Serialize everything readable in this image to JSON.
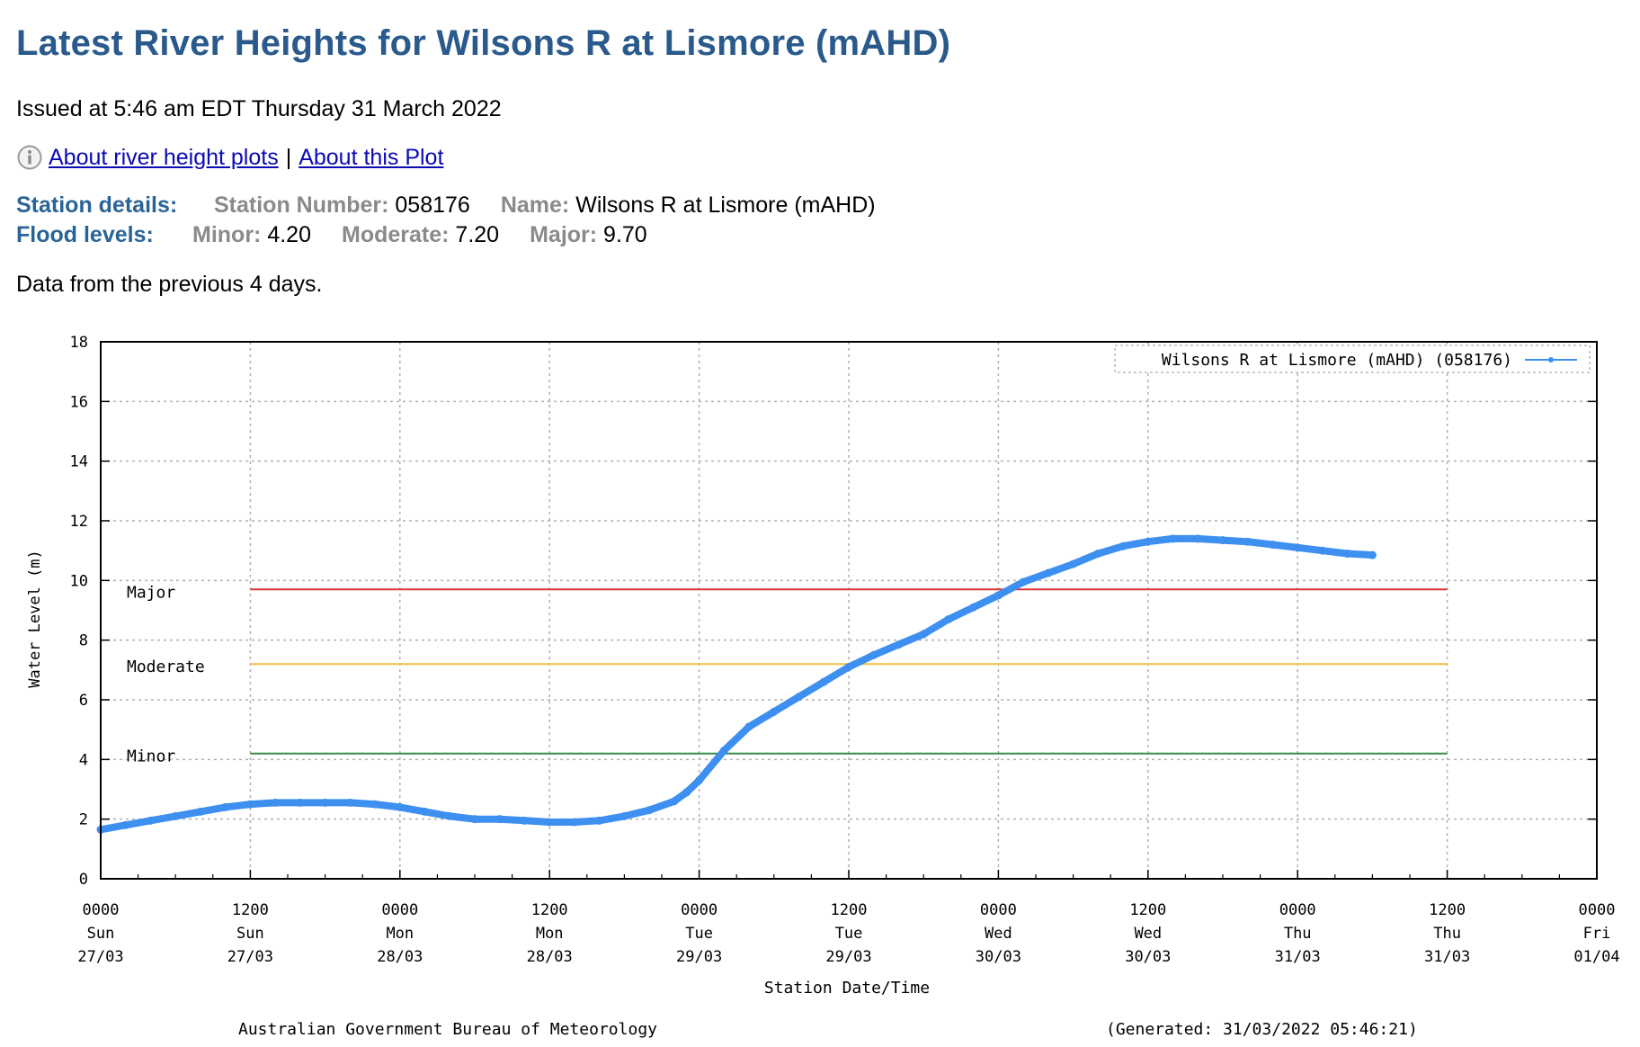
{
  "page": {
    "title": "Latest River Heights for Wilsons R at Lismore (mAHD)",
    "issued": "Issued at 5:46 am EDT Thursday 31 March 2022",
    "links": {
      "about_plots": "About river height plots",
      "separator": "|",
      "about_this": "About this Plot"
    },
    "station": {
      "heading": "Station details:",
      "number_label": "Station Number:",
      "number": "058176",
      "name_label": "Name:",
      "name": "Wilsons R at Lismore (mAHD)"
    },
    "flood": {
      "heading": "Flood levels:",
      "minor_label": "Minor:",
      "minor": "4.20",
      "moderate_label": "Moderate:",
      "moderate": "7.20",
      "major_label": "Major:",
      "major": "9.70"
    },
    "data_note": "Data from the previous 4 days."
  },
  "chart_data": {
    "type": "line",
    "ylabel": "Water Level (m)",
    "xlabel": "Station Date/Time",
    "ylim": [
      0,
      18
    ],
    "yticks": [
      "0",
      "2",
      "4",
      "6",
      "8",
      "10",
      "12",
      "14",
      "16",
      "18"
    ],
    "xlim": [
      0,
      120
    ],
    "xticks": [
      {
        "lines": [
          "0000",
          "Sun",
          "27/03"
        ]
      },
      {
        "lines": [
          "1200",
          "Sun",
          "27/03"
        ]
      },
      {
        "lines": [
          "0000",
          "Mon",
          "28/03"
        ]
      },
      {
        "lines": [
          "1200",
          "Mon",
          "28/03"
        ]
      },
      {
        "lines": [
          "0000",
          "Tue",
          "29/03"
        ]
      },
      {
        "lines": [
          "1200",
          "Tue",
          "29/03"
        ]
      },
      {
        "lines": [
          "0000",
          "Wed",
          "30/03"
        ]
      },
      {
        "lines": [
          "1200",
          "Wed",
          "30/03"
        ]
      },
      {
        "lines": [
          "0000",
          "Thu",
          "31/03"
        ]
      },
      {
        "lines": [
          "1200",
          "Thu",
          "31/03"
        ]
      },
      {
        "lines": [
          "0000",
          "Fri",
          "01/04"
        ]
      }
    ],
    "grid": true,
    "legend": "top-right",
    "series": [
      {
        "name": "Wilsons R at Lismore (mAHD) (058176)",
        "color": "#3d8ff0",
        "x": [
          0,
          2,
          4,
          6,
          8,
          10,
          12,
          14,
          16,
          18,
          20,
          22,
          24,
          26,
          28,
          30,
          32,
          34,
          36,
          38,
          40,
          42,
          44,
          46,
          47,
          48,
          50,
          52,
          54,
          56,
          58,
          60,
          62,
          64,
          66,
          68,
          70,
          72,
          74,
          76,
          78,
          80,
          82,
          84,
          86,
          88,
          90,
          92,
          94,
          96,
          98,
          100,
          102
        ],
        "values": [
          1.65,
          1.8,
          1.95,
          2.1,
          2.25,
          2.4,
          2.5,
          2.55,
          2.55,
          2.55,
          2.55,
          2.5,
          2.4,
          2.25,
          2.1,
          2.0,
          2.0,
          1.95,
          1.9,
          1.9,
          1.95,
          2.1,
          2.3,
          2.6,
          2.9,
          3.3,
          4.3,
          5.1,
          5.6,
          6.1,
          6.6,
          7.1,
          7.5,
          7.85,
          8.2,
          8.7,
          9.1,
          9.5,
          9.95,
          10.25,
          10.55,
          10.9,
          11.15,
          11.3,
          11.4,
          11.4,
          11.35,
          11.3,
          11.2,
          11.1,
          11.0,
          10.9,
          10.85
        ]
      }
    ],
    "thresholds": [
      {
        "label": "Major",
        "value": 9.7,
        "color": "#dd3333"
      },
      {
        "label": "Moderate",
        "value": 7.2,
        "color": "#f0c040"
      },
      {
        "label": "Minor",
        "value": 4.2,
        "color": "#3a8a4a"
      }
    ],
    "threshold_x_range": [
      12,
      108
    ],
    "footer_left": "Australian Government Bureau of Meteorology",
    "footer_right": "(Generated: 31/03/2022 05:46:21)"
  }
}
